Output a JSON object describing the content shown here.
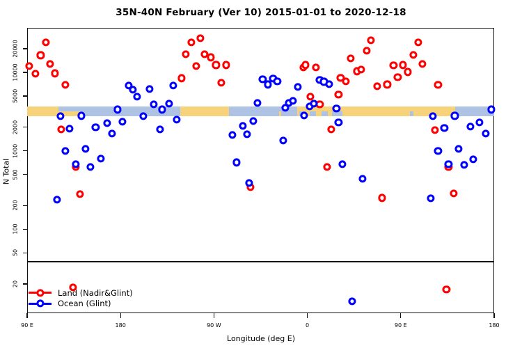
{
  "title": "35N-40N February (Ver 10)   2015-01-01 to 2020-12-18",
  "y_axis": {
    "label": "N Total",
    "ticks": [
      20,
      50,
      100,
      200,
      500,
      1000,
      2000,
      5000,
      10000,
      20000
    ]
  },
  "x_axis": {
    "label": "Longitude (deg E)",
    "ticks": [
      {
        "lon": 90,
        "label": "90 E"
      },
      {
        "lon": 180,
        "label": "180"
      },
      {
        "lon": 270,
        "label": "90 W"
      },
      {
        "lon": 360,
        "label": "0"
      },
      {
        "lon": 450,
        "label": "90 E"
      },
      {
        "lon": 540,
        "label": "180"
      }
    ]
  },
  "legend": {
    "items": [
      {
        "label": "Land (Nadir&Glint)",
        "color": "#ff0000"
      },
      {
        "label": "Ocean (Glint)",
        "color": "#0000ff"
      }
    ]
  },
  "chart_data": {
    "type": "scatter",
    "title": "35N-40N February (Ver 10)   2015-01-01 to 2020-12-18",
    "xlabel": "Longitude (deg E)",
    "ylabel": "N Total",
    "x_axis_unwrapped_deg_range": [
      90,
      540
    ],
    "y_scale": "log10",
    "y_tick_values": [
      20,
      50,
      100,
      200,
      500,
      1000,
      2000,
      5000,
      10000,
      20000
    ],
    "divider_value": 39,
    "marker": "open-circle",
    "series": [
      {
        "name": "Land (Nadir&Glint)",
        "color": "#ff0000",
        "points": [
          [
            108,
            24000
          ],
          [
            103,
            16500
          ],
          [
            112,
            12700
          ],
          [
            92,
            12000
          ],
          [
            98,
            9600
          ],
          [
            117,
            9700
          ],
          [
            127,
            6900
          ],
          [
            123,
            1870
          ],
          [
            137,
            620
          ],
          [
            141,
            280
          ],
          [
            134,
            18
          ],
          [
            248,
            24000
          ],
          [
            257,
            27000
          ],
          [
            243,
            17000
          ],
          [
            261,
            17000
          ],
          [
            267,
            15500
          ],
          [
            253,
            12000
          ],
          [
            272,
            12400
          ],
          [
            282,
            12400
          ],
          [
            239,
            8400
          ],
          [
            277,
            7400
          ],
          [
            305,
            345
          ],
          [
            356,
            11600
          ],
          [
            358,
            12400
          ],
          [
            368,
            11600
          ],
          [
            363,
            4900
          ],
          [
            366,
            4000
          ],
          [
            372,
            3900
          ],
          [
            383,
            1870
          ],
          [
            379,
            620
          ],
          [
            390,
            5200
          ],
          [
            392,
            8500
          ],
          [
            397,
            7700
          ],
          [
            402,
            15000
          ],
          [
            408,
            10300
          ],
          [
            412,
            10900
          ],
          [
            417,
            19000
          ],
          [
            421,
            25500
          ],
          [
            427,
            6700
          ],
          [
            432,
            250
          ],
          [
            437,
            7000
          ],
          [
            443,
            12200
          ],
          [
            447,
            8600
          ],
          [
            452,
            12400
          ],
          [
            457,
            10100
          ],
          [
            462,
            16600
          ],
          [
            467,
            24000
          ],
          [
            471,
            12700
          ],
          [
            483,
            1830
          ],
          [
            486,
            6900
          ],
          [
            494,
            17
          ],
          [
            496,
            620
          ],
          [
            501,
            285
          ]
        ]
      },
      {
        "name": "Ocean (Glint)",
        "color": "#0000ff",
        "points": [
          [
            188,
            6800
          ],
          [
            192,
            6000
          ],
          [
            196,
            4900
          ],
          [
            208,
            6100
          ],
          [
            212,
            3900
          ],
          [
            231,
            6800
          ],
          [
            227,
            4000
          ],
          [
            220,
            3350
          ],
          [
            177,
            3350
          ],
          [
            122,
            2740
          ],
          [
            142,
            2790
          ],
          [
            131,
            1900
          ],
          [
            156,
            1990
          ],
          [
            167,
            2250
          ],
          [
            182,
            2330
          ],
          [
            172,
            1650
          ],
          [
            202,
            2740
          ],
          [
            218,
            1870
          ],
          [
            234,
            2480
          ],
          [
            127,
            1000
          ],
          [
            146,
            1050
          ],
          [
            137,
            670
          ],
          [
            151,
            620
          ],
          [
            161,
            790
          ],
          [
            119,
            237
          ],
          [
            317,
            8150
          ],
          [
            322,
            7000
          ],
          [
            327,
            8300
          ],
          [
            331,
            7700
          ],
          [
            372,
            8000
          ],
          [
            376,
            7600
          ],
          [
            381,
            7100
          ],
          [
            351,
            6500
          ],
          [
            312,
            4100
          ],
          [
            342,
            4100
          ],
          [
            346,
            4300
          ],
          [
            339,
            3500
          ],
          [
            362,
            3700
          ],
          [
            366,
            4000
          ],
          [
            357,
            2800
          ],
          [
            308,
            2400
          ],
          [
            298,
            2060
          ],
          [
            302,
            1630
          ],
          [
            288,
            1600
          ],
          [
            337,
            1340
          ],
          [
            292,
            710
          ],
          [
            304,
            390
          ],
          [
            388,
            3450
          ],
          [
            481,
            2740
          ],
          [
            502,
            2790
          ],
          [
            537,
            3350
          ],
          [
            390,
            2280
          ],
          [
            492,
            1960
          ],
          [
            517,
            2020
          ],
          [
            526,
            2300
          ],
          [
            532,
            1650
          ],
          [
            486,
            1000
          ],
          [
            506,
            1060
          ],
          [
            496,
            670
          ],
          [
            511,
            660
          ],
          [
            520,
            780
          ],
          [
            394,
            680
          ],
          [
            413,
            440
          ],
          [
            479,
            247
          ],
          [
            403,
            12
          ]
        ]
      }
    ],
    "surface_band": {
      "description": "land/ocean surface-type strip along longitude",
      "value_center": 3100,
      "land_color": "#f6d27b",
      "ocean_color": "#aec3e3",
      "segments": [
        {
          "start": 90,
          "end": 120.3,
          "surface": "land"
        },
        {
          "start": 120.3,
          "end": 237.5,
          "surface": "ocean"
        },
        {
          "start": 237.5,
          "end": 284.5,
          "surface": "land"
        },
        {
          "start": 284.5,
          "end": 350,
          "surface": "ocean"
        },
        {
          "start": 350,
          "end": 502.5,
          "surface": "land"
        },
        {
          "start": 502.5,
          "end": 540,
          "surface": "ocean"
        }
      ],
      "patches": [
        {
          "start": 120.3,
          "end": 142,
          "surface": "land",
          "half": "lower"
        },
        {
          "start": 332.5,
          "end": 335,
          "surface": "land",
          "half": "lower"
        },
        {
          "start": 352,
          "end": 358,
          "surface": "ocean",
          "half": "lower"
        },
        {
          "start": 362,
          "end": 368,
          "surface": "ocean",
          "half": "lower"
        },
        {
          "start": 374,
          "end": 380,
          "surface": "ocean",
          "half": "lower"
        },
        {
          "start": 384,
          "end": 394,
          "surface": "ocean",
          "half": "lower"
        },
        {
          "start": 459,
          "end": 462,
          "surface": "ocean",
          "half": "lower"
        }
      ]
    }
  }
}
